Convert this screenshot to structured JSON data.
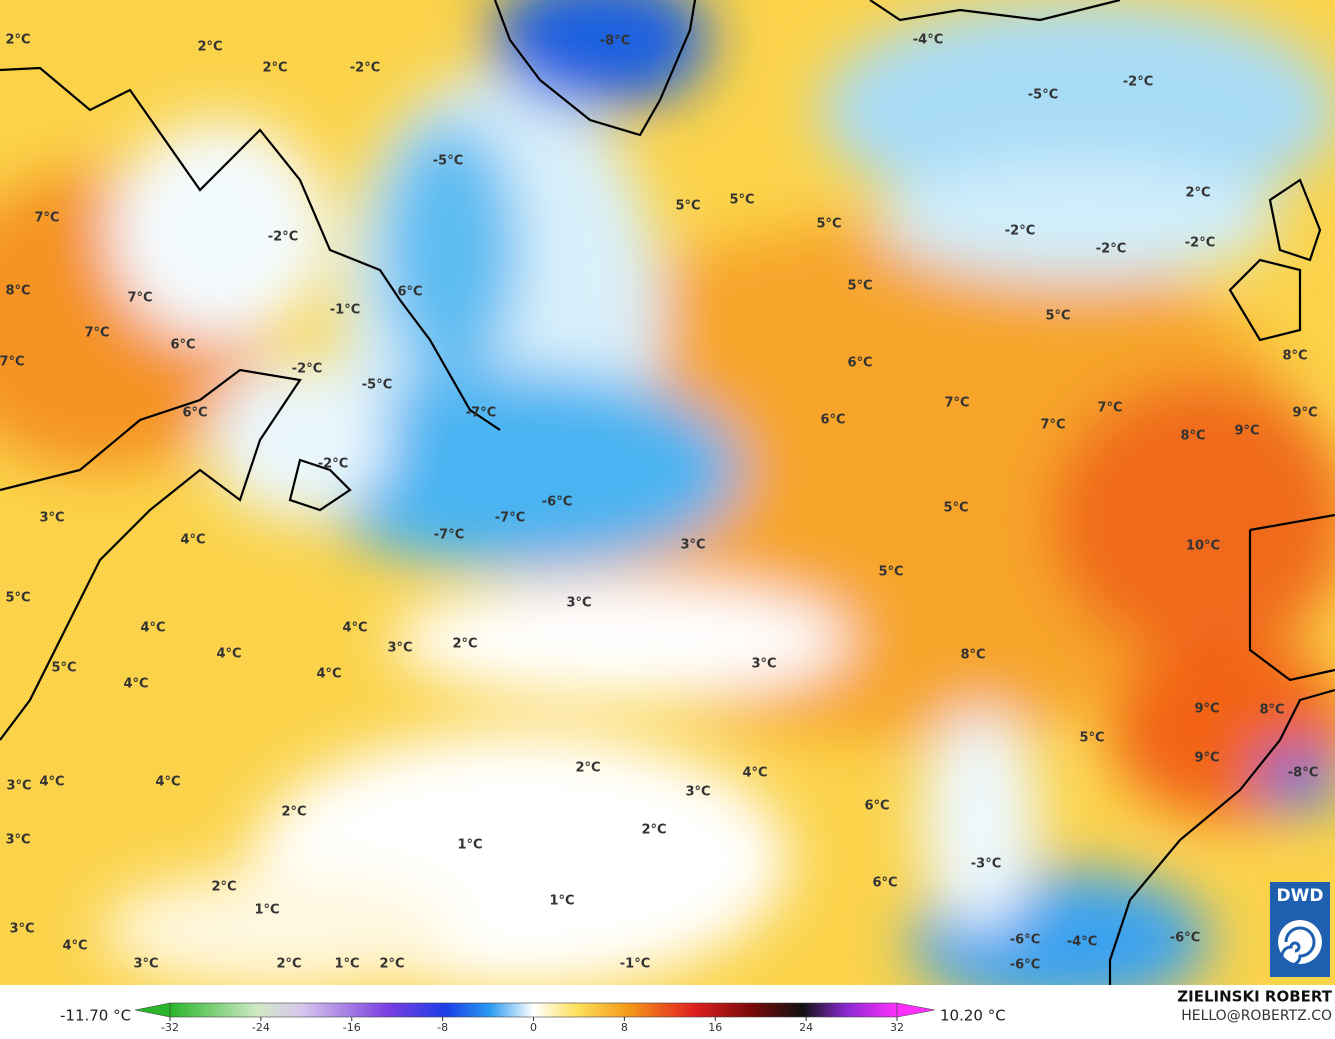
{
  "map": {
    "labels": [
      "2°C",
      "2°C",
      "2°C",
      "-2°C",
      "-8°C",
      "-4°C",
      "-2°C",
      "-5°C",
      "-5°C",
      "7°C",
      "-2°C",
      "5°C",
      "5°C",
      "5°C",
      "2°C",
      "-2°C",
      "-2°C",
      "-2°C",
      "8°C",
      "7°C",
      "-1°C",
      "6°C",
      "5°C",
      "5°C",
      "7°C",
      "6°C",
      "7°C",
      "-2°C",
      "-5°C",
      "6°C",
      "8°C",
      "7°C",
      "7°C",
      "-7°C",
      "6°C",
      "6°C",
      "7°C",
      "8°C",
      "9°C",
      "9°C",
      "-2°C",
      "-6°C",
      "5°C",
      "-7°C",
      "3°C",
      "-7°C",
      "4°C",
      "3°C",
      "10°C",
      "5°C",
      "3°C",
      "5°C",
      "4°C",
      "4°C",
      "3°C",
      "2°C",
      "4°C",
      "8°C",
      "5°C",
      "3°C",
      "4°C",
      "4°C",
      "9°C",
      "8°C",
      "5°C",
      "4°C",
      "3°C",
      "9°C",
      "-8°C",
      "2°C",
      "4°C",
      "4°C",
      "3°C",
      "2°C",
      "6°C",
      "2°C",
      "1°C",
      "3°C",
      "-3°C",
      "6°C",
      "2°C",
      "1°C",
      "1°C",
      "3°C",
      "-6°C",
      "-4°C",
      "-6°C",
      "4°C",
      "3°C",
      "2°C",
      "1°C",
      "2°C",
      "-1°C",
      "-6°C"
    ]
  },
  "colorbar": {
    "ticks": [
      -32,
      -24,
      -16,
      -8,
      0,
      8,
      16,
      24,
      32
    ],
    "clim": [
      -32,
      32
    ],
    "min_label": "-11.70 °C",
    "max_label": "10.20 °C"
  },
  "credit": {
    "name": "ZIELINSKI ROBERT",
    "email": "HELLO@ROBERTZ.CO"
  },
  "logo": "DWD"
}
